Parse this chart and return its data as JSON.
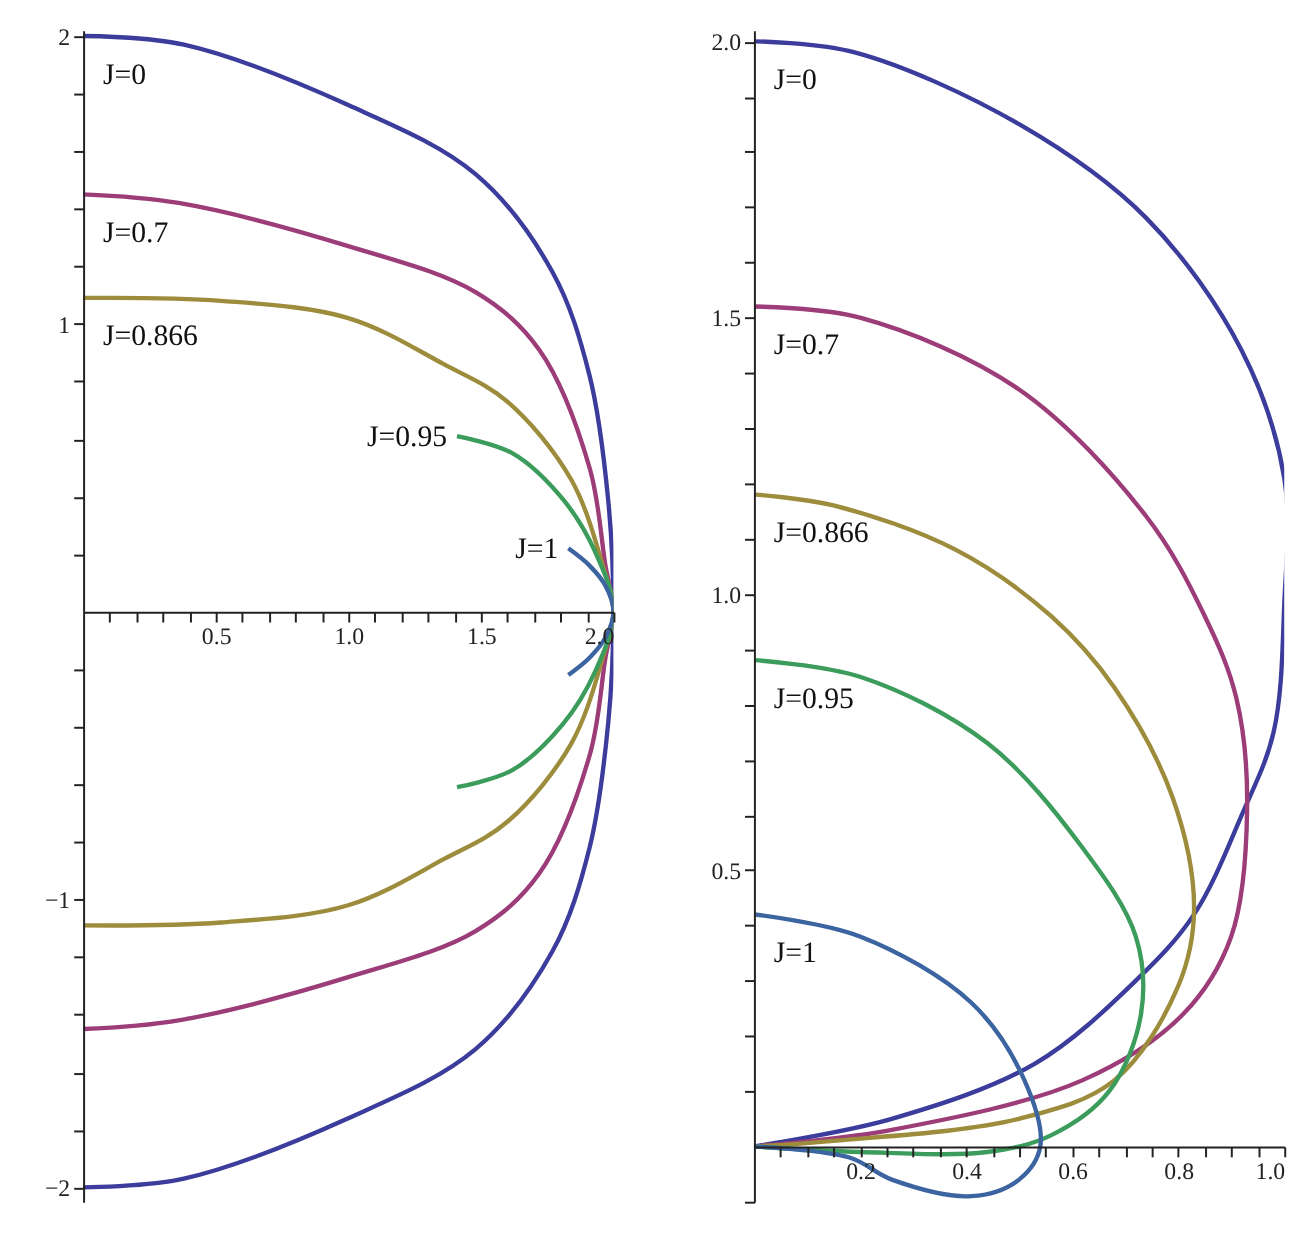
{
  "chart_data": [
    {
      "type": "line",
      "xlim": [
        0,
        2.0
      ],
      "ylim": [
        -2.05,
        2.02
      ],
      "xticks": [
        {
          "value": 0.1,
          "label": null
        },
        {
          "value": 0.2,
          "label": null
        },
        {
          "value": 0.3,
          "label": null
        },
        {
          "value": 0.4,
          "label": null
        },
        {
          "value": 0.5,
          "label": "0.5"
        },
        {
          "value": 0.6,
          "label": null
        },
        {
          "value": 0.7,
          "label": null
        },
        {
          "value": 0.8,
          "label": null
        },
        {
          "value": 0.9,
          "label": null
        },
        {
          "value": 1.0,
          "label": "1.0"
        },
        {
          "value": 1.1,
          "label": null
        },
        {
          "value": 1.2,
          "label": null
        },
        {
          "value": 1.3,
          "label": null
        },
        {
          "value": 1.4,
          "label": null
        },
        {
          "value": 1.5,
          "label": "1.5"
        },
        {
          "value": 1.6,
          "label": null
        },
        {
          "value": 1.7,
          "label": null
        },
        {
          "value": 1.8,
          "label": null
        },
        {
          "value": 1.9,
          "label": null
        },
        {
          "value": 2.0,
          "label": "2.0"
        }
      ],
      "yticks": [
        {
          "value": -2,
          "label": "−2"
        },
        {
          "value": -1.8,
          "label": null
        },
        {
          "value": -1.6,
          "label": null
        },
        {
          "value": -1.4,
          "label": null
        },
        {
          "value": -1.2,
          "label": null
        },
        {
          "value": -1,
          "label": "−1"
        },
        {
          "value": -0.8,
          "label": null
        },
        {
          "value": -0.6,
          "label": null
        },
        {
          "value": -0.4,
          "label": null
        },
        {
          "value": -0.2,
          "label": null
        },
        {
          "value": 0.2,
          "label": null
        },
        {
          "value": 0.4,
          "label": null
        },
        {
          "value": 0.6,
          "label": null
        },
        {
          "value": 0.8,
          "label": null
        },
        {
          "value": 1,
          "label": "1"
        },
        {
          "value": 1.2,
          "label": null
        },
        {
          "value": 1.4,
          "label": null
        },
        {
          "value": 1.6,
          "label": null
        },
        {
          "value": 1.8,
          "label": null
        },
        {
          "value": 2,
          "label": "2"
        }
      ],
      "series": [
        {
          "name": "J=0",
          "color": "#3c3c9c",
          "x": [
            0,
            0.38,
            1.0,
            1.48,
            1.77,
            1.91,
            1.98,
            2.0,
            1.98,
            1.91,
            1.77,
            1.48,
            1.0,
            0.38,
            0
          ],
          "values": [
            2.0,
            1.97,
            1.76,
            1.52,
            1.18,
            0.82,
            0.39,
            0,
            -0.39,
            -0.82,
            -1.18,
            -1.52,
            -1.76,
            -1.97,
            -2.0
          ]
        },
        {
          "name": "J=0.7",
          "color": "#9c3c78",
          "x": [
            0,
            0.36,
            1.0,
            1.48,
            1.72,
            1.91,
            1.97,
            2.0,
            1.97,
            1.91,
            1.72,
            1.48,
            1.0,
            0.36,
            0
          ],
          "values": [
            1.45,
            1.42,
            1.27,
            1.11,
            0.91,
            0.5,
            0.16,
            0,
            -0.16,
            -0.5,
            -0.91,
            -1.11,
            -1.27,
            -1.42,
            -1.45
          ]
        },
        {
          "name": "J=0.866",
          "color": "#9c8c3c",
          "x": [
            0,
            0.52,
            1.0,
            1.36,
            1.6,
            1.84,
            1.96,
            2.0,
            1.96,
            1.84,
            1.6,
            1.36,
            1.0,
            0.52,
            0
          ],
          "values": [
            1.09,
            1.08,
            1.02,
            0.86,
            0.73,
            0.46,
            0.16,
            0,
            -0.16,
            -0.46,
            -0.73,
            -0.86,
            -1.02,
            -1.08,
            -1.09
          ]
        },
        {
          "name": "J=0.95",
          "color": "#3c9c5c",
          "x": [
            1.41,
            1.62,
            1.81,
            1.93,
            2.0,
            1.93,
            1.81,
            1.62,
            1.41
          ],
          "values": [
            0.61,
            0.55,
            0.39,
            0.21,
            0,
            -0.21,
            -0.39,
            -0.55,
            -0.61
          ]
        },
        {
          "name": "J=1",
          "color": "#3c64a0",
          "x": [
            1.83,
            1.91,
            1.97,
            2.0,
            1.97,
            1.91,
            1.83
          ],
          "values": [
            0.22,
            0.16,
            0.09,
            0,
            -0.09,
            -0.16,
            -0.22
          ]
        }
      ]
    },
    {
      "type": "line",
      "xlim": [
        0,
        1.0
      ],
      "ylim": [
        -0.1,
        2.02
      ],
      "xticks": [
        {
          "value": 0.05,
          "label": null
        },
        {
          "value": 0.1,
          "label": null
        },
        {
          "value": 0.15,
          "label": null
        },
        {
          "value": 0.2,
          "label": "0.2"
        },
        {
          "value": 0.25,
          "label": null
        },
        {
          "value": 0.3,
          "label": null
        },
        {
          "value": 0.35,
          "label": null
        },
        {
          "value": 0.4,
          "label": "0.4"
        },
        {
          "value": 0.45,
          "label": null
        },
        {
          "value": 0.5,
          "label": null
        },
        {
          "value": 0.55,
          "label": null
        },
        {
          "value": 0.6,
          "label": "0.6"
        },
        {
          "value": 0.65,
          "label": null
        },
        {
          "value": 0.7,
          "label": null
        },
        {
          "value": 0.75,
          "label": null
        },
        {
          "value": 0.8,
          "label": "0.8"
        },
        {
          "value": 0.85,
          "label": null
        },
        {
          "value": 0.9,
          "label": null
        },
        {
          "value": 0.95,
          "label": null
        },
        {
          "value": 1.0,
          "label": "1.0"
        }
      ],
      "yticks": [
        {
          "value": -0.1,
          "label": null
        },
        {
          "value": 0.1,
          "label": null
        },
        {
          "value": 0.2,
          "label": null
        },
        {
          "value": 0.3,
          "label": null
        },
        {
          "value": 0.4,
          "label": null
        },
        0.5,
        {
          "value": 0.6,
          "label": null
        },
        {
          "value": 0.7,
          "label": null
        },
        {
          "value": 0.8,
          "label": null
        },
        {
          "value": 0.9,
          "label": null
        },
        {
          "value": 1.0,
          "label": "1.0"
        },
        {
          "value": 1.1,
          "label": null
        },
        {
          "value": 1.2,
          "label": null
        },
        {
          "value": 1.3,
          "label": null
        },
        {
          "value": 1.4,
          "label": null
        },
        1.5,
        {
          "value": 1.6,
          "label": null
        },
        {
          "value": 1.7,
          "label": null
        },
        {
          "value": 1.8,
          "label": null
        },
        {
          "value": 1.9,
          "label": null
        },
        {
          "value": 2.0,
          "label": "2.0"
        }
      ],
      "series": [
        {
          "name": "J=0",
          "color": "#3c3c9c",
          "x": [
            0,
            0.19,
            0.5,
            0.74,
            0.92,
            1.0,
            1.0,
            0.98,
            0.92,
            0.83,
            0.72,
            0.53,
            0.26,
            0
          ],
          "values": [
            2.0,
            1.98,
            1.85,
            1.68,
            1.44,
            1.21,
            0.98,
            0.75,
            0.6,
            0.42,
            0.3,
            0.15,
            0.05,
            0
          ]
        },
        {
          "name": "J=0.7",
          "color": "#9c3c78",
          "x": [
            0,
            0.2,
            0.5,
            0.74,
            0.85,
            0.91,
            0.93,
            0.9,
            0.81,
            0.62,
            0.26,
            0
          ],
          "values": [
            1.52,
            1.5,
            1.37,
            1.14,
            0.96,
            0.81,
            0.61,
            0.38,
            0.24,
            0.12,
            0.03,
            0
          ]
        },
        {
          "name": "J=0.866",
          "color": "#9c8c3c",
          "x": [
            0,
            0.15,
            0.38,
            0.56,
            0.68,
            0.79,
            0.83,
            0.8,
            0.68,
            0.5,
            0.15,
            0
          ],
          "values": [
            1.18,
            1.16,
            1.08,
            0.96,
            0.83,
            0.63,
            0.43,
            0.29,
            0.12,
            0.05,
            0.01,
            0
          ]
        },
        {
          "name": "J=0.95",
          "color": "#3c9c5c",
          "x": [
            0,
            0.2,
            0.44,
            0.62,
            0.72,
            0.73,
            0.67,
            0.56,
            0.44,
            0.2,
            0
          ],
          "values": [
            0.88,
            0.85,
            0.73,
            0.54,
            0.38,
            0.24,
            0.1,
            0.02,
            -0.01,
            -0.01,
            0
          ]
        },
        {
          "name": "J=1",
          "color": "#3c64a0",
          "x": [
            0,
            0.2,
            0.41,
            0.51,
            0.54,
            0.5,
            0.41,
            0.26,
            0.18,
            0
          ],
          "values": [
            0.42,
            0.38,
            0.26,
            0.12,
            0.0,
            -0.06,
            -0.09,
            -0.06,
            -0.02,
            0
          ]
        }
      ]
    }
  ]
}
